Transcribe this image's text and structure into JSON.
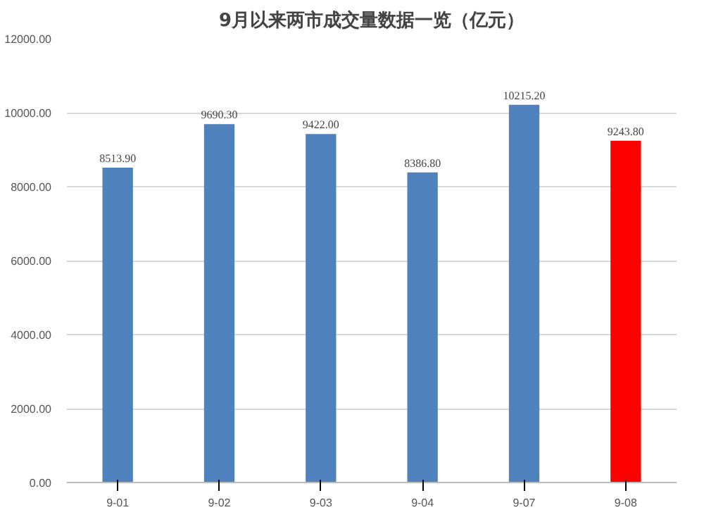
{
  "chart_data": {
    "type": "bar",
    "title": "9月以来两市成交量数据一览（亿元）",
    "categories": [
      "9-01",
      "9-02",
      "9-03",
      "9-04",
      "9-07",
      "9-08"
    ],
    "values": [
      8513.9,
      9690.3,
      9422.0,
      8386.8,
      10215.2,
      9243.8
    ],
    "colors": [
      "#4f81bd",
      "#4f81bd",
      "#4f81bd",
      "#4f81bd",
      "#4f81bd",
      "#ff0000"
    ],
    "value_labels": [
      "8513.90",
      "9690.30",
      "9422.00",
      "8386.80",
      "10215.20",
      "9243.80"
    ],
    "ylim": [
      0,
      12000
    ],
    "yticks": [
      {
        "value": 0,
        "label": "0.00"
      },
      {
        "value": 2000,
        "label": "2000.00"
      },
      {
        "value": 4000,
        "label": "4000.00"
      },
      {
        "value": 6000,
        "label": "6000.00"
      },
      {
        "value": 8000,
        "label": "8000.00"
      },
      {
        "value": 10000,
        "label": "10000.00"
      },
      {
        "value": 12000,
        "label": "12000.00"
      }
    ],
    "grid": "y"
  }
}
